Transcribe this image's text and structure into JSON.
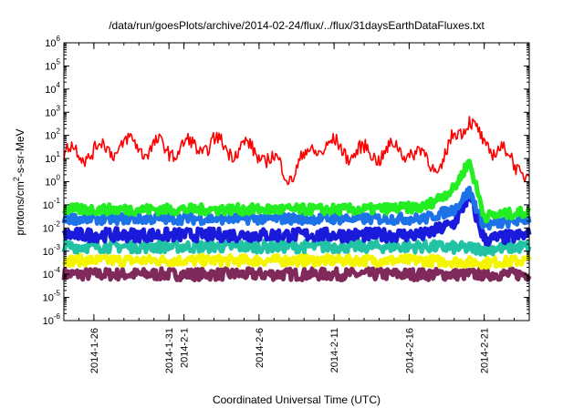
{
  "chart_data": {
    "type": "line",
    "title": "/data/run/goesPlots/archive/2014-02-24/flux/../flux/31daysEarthDataFluxes.txt",
    "xlabel": "Coordinated Universal Time (UTC)",
    "ylabel": {
      "prefix": "protons/cm",
      "sup": "2",
      "suffix": "-s-sr-MeV"
    },
    "yscale": "log",
    "ylim": [
      -6,
      6
    ],
    "y_ticks": [
      {
        "base": "10",
        "exp": "-6",
        "value": -6
      },
      {
        "base": "10",
        "exp": "-5",
        "value": -5
      },
      {
        "base": "10",
        "exp": "-4",
        "value": -4
      },
      {
        "base": "10",
        "exp": "-3",
        "value": -3
      },
      {
        "base": "10",
        "exp": "-2",
        "value": -2
      },
      {
        "base": "10",
        "exp": "-1",
        "value": -1
      },
      {
        "base": "10",
        "exp": "0",
        "value": 0
      },
      {
        "base": "10",
        "exp": "1",
        "value": 1
      },
      {
        "base": "10",
        "exp": "2",
        "value": 2
      },
      {
        "base": "10",
        "exp": "3",
        "value": 3
      },
      {
        "base": "10",
        "exp": "4",
        "value": 4
      },
      {
        "base": "10",
        "exp": "5",
        "value": 5
      },
      {
        "base": "10",
        "exp": "6",
        "value": 6
      }
    ],
    "x_range": [
      "2014-01-24",
      "2014-02-24"
    ],
    "x_ticks": [
      {
        "label": "2014-1-26",
        "date": "2014-01-26"
      },
      {
        "label": "2014-1-31",
        "date": "2014-01-31"
      },
      {
        "label": "2014-2-1",
        "date": "2014-02-01"
      },
      {
        "label": "2014-2-6",
        "date": "2014-02-06"
      },
      {
        "label": "2014-2-11",
        "date": "2014-02-11"
      },
      {
        "label": "2014-2-16",
        "date": "2014-02-16"
      },
      {
        "label": "2014-2-21",
        "date": "2014-02-21"
      }
    ],
    "grid": false,
    "legend": "none",
    "series": [
      {
        "color": "#7f2a5a",
        "x": [
          "2014-01-24",
          "2014-01-28",
          "2014-02-01",
          "2014-02-05",
          "2014-02-09",
          "2014-02-13",
          "2014-02-17",
          "2014-02-21",
          "2014-02-24"
        ],
        "y": [
          -4.0,
          -4.0,
          -4.0,
          -4.0,
          -4.0,
          -4.0,
          -4.0,
          -4.0,
          -4.0
        ]
      },
      {
        "color": "#f5f500",
        "x": [
          "2014-01-24",
          "2014-01-28",
          "2014-02-01",
          "2014-02-05",
          "2014-02-09",
          "2014-02-13",
          "2014-02-17",
          "2014-02-21",
          "2014-02-24"
        ],
        "y": [
          -3.4,
          -3.4,
          -3.4,
          -3.4,
          -3.4,
          -3.4,
          -3.4,
          -3.5,
          -3.4
        ]
      },
      {
        "color": "#22c3a4",
        "x": [
          "2014-01-24",
          "2014-01-28",
          "2014-02-01",
          "2014-02-05",
          "2014-02-09",
          "2014-02-13",
          "2014-02-17",
          "2014-02-21",
          "2014-02-24"
        ],
        "y": [
          -2.8,
          -2.8,
          -2.8,
          -2.8,
          -2.8,
          -2.8,
          -2.8,
          -2.9,
          -2.8
        ]
      },
      {
        "color": "#1a1adb",
        "x": [
          "2014-01-24",
          "2014-01-28",
          "2014-02-01",
          "2014-02-05",
          "2014-02-09",
          "2014-02-13",
          "2014-02-17",
          "2014-02-19",
          "2014-02-20",
          "2014-02-21",
          "2014-02-24"
        ],
        "y": [
          -2.3,
          -2.3,
          -2.3,
          -2.3,
          -2.3,
          -2.3,
          -2.3,
          -1.8,
          -0.6,
          -2.5,
          -2.3
        ]
      },
      {
        "color": "#1e72e8",
        "x": [
          "2014-01-24",
          "2014-01-28",
          "2014-02-01",
          "2014-02-05",
          "2014-02-09",
          "2014-02-13",
          "2014-02-17",
          "2014-02-19",
          "2014-02-20",
          "2014-02-21",
          "2014-02-24"
        ],
        "y": [
          -1.6,
          -1.6,
          -1.6,
          -1.6,
          -1.6,
          -1.6,
          -1.6,
          -1.2,
          -0.4,
          -1.9,
          -1.6
        ]
      },
      {
        "color": "#22ee22",
        "x": [
          "2014-01-24",
          "2014-01-28",
          "2014-02-01",
          "2014-02-05",
          "2014-02-09",
          "2014-02-13",
          "2014-02-17",
          "2014-02-19",
          "2014-02-20",
          "2014-02-21",
          "2014-02-24"
        ],
        "y": [
          -1.2,
          -1.2,
          -1.2,
          -1.2,
          -1.2,
          -1.2,
          -1.1,
          -0.3,
          0.9,
          -1.5,
          -1.3
        ]
      },
      {
        "color": "#ff0000",
        "x": [
          "2014-01-24",
          "2014-01-26",
          "2014-01-28",
          "2014-01-31",
          "2014-02-03",
          "2014-02-06",
          "2014-02-08",
          "2014-02-10",
          "2014-02-13",
          "2014-02-16",
          "2014-02-18",
          "2014-02-19",
          "2014-02-20",
          "2014-02-21",
          "2014-02-22",
          "2014-02-23",
          "2014-02-24"
        ],
        "y": [
          1.2,
          1.3,
          1.6,
          1.4,
          1.6,
          1.3,
          0.3,
          1.6,
          1.2,
          1.4,
          0.6,
          1.8,
          2.9,
          1.3,
          1.7,
          0.5,
          0.6
        ]
      }
    ]
  }
}
